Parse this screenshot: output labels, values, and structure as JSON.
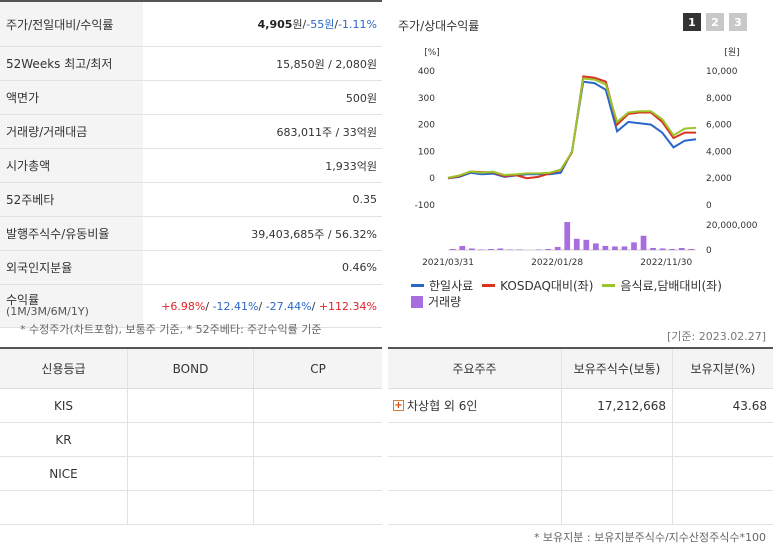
{
  "info": {
    "price_label": "주가/전일대비/수익률",
    "price": "4,905",
    "won": "원",
    "sep": " / ",
    "change": "-55원",
    "rate": "-1.11%",
    "rows": [
      {
        "label": "52Weeks 최고/최저",
        "value": "15,850원 / 2,080원"
      },
      {
        "label": "액면가",
        "value": "500원"
      },
      {
        "label": "거래량/거래대금",
        "value": "683,011주 / 33억원"
      },
      {
        "label": "시가총액",
        "value": "1,933억원"
      },
      {
        "label": "52주베타",
        "value": "0.35"
      },
      {
        "label": "발행주식수/유동비율",
        "value": "39,403,685주 / 56.32%"
      },
      {
        "label": "외국인지분율",
        "value": "0.46%"
      }
    ],
    "return_label": "수익률",
    "return_sub": "(1M/3M/6M/1Y)",
    "returns": [
      "+6.98%",
      "-12.41%",
      "-27.44%",
      "+112.34%"
    ],
    "note": "* 수정주가(차트포함), 보통주 기준, * 52주베타: 주간수익률 기준"
  },
  "chart_panel": {
    "title": "주가/상대수익률",
    "tabs": [
      "1",
      "2",
      "3"
    ],
    "active_tab": 0
  },
  "chart_data": {
    "type": "line",
    "y_left_unit": "[%]",
    "y_right_unit": "[원]",
    "y_left_ticks": [
      400,
      300,
      200,
      100,
      0,
      -100
    ],
    "y_right_ticks": [
      "10,000",
      "8,000",
      "6,000",
      "4,000",
      "2,000",
      "0"
    ],
    "volume_ticks": [
      "20,000,000",
      "0"
    ],
    "x_ticks": [
      "2021/03/31",
      "2022/01/28",
      "2022/11/30"
    ],
    "series": [
      {
        "name": "한일사료",
        "color": "#2a66c8",
        "values": [
          0,
          5,
          20,
          15,
          17,
          5,
          10,
          15,
          15,
          15,
          20,
          100,
          360,
          355,
          330,
          175,
          210,
          205,
          200,
          170,
          115,
          140,
          145
        ]
      },
      {
        "name": "KOSDAQ대비(좌)",
        "color": "#d9331f",
        "values": [
          0,
          8,
          25,
          22,
          22,
          8,
          12,
          0,
          5,
          18,
          30,
          95,
          380,
          375,
          360,
          200,
          240,
          245,
          245,
          210,
          150,
          170,
          170
        ]
      },
      {
        "name": "음식료,담배대비(좌)",
        "color": "#9bc42a",
        "values": [
          2,
          10,
          25,
          20,
          24,
          12,
          14,
          18,
          18,
          20,
          32,
          98,
          372,
          368,
          350,
          210,
          245,
          250,
          250,
          220,
          160,
          185,
          188
        ]
      }
    ],
    "volume": {
      "name": "거래량",
      "color": "#a86ee0",
      "values": [
        2,
        8,
        3,
        1,
        2,
        3,
        1,
        1,
        0,
        1,
        2,
        6,
        55,
        22,
        20,
        13,
        8,
        7,
        7,
        15,
        28,
        4,
        3,
        2,
        4,
        2
      ]
    }
  },
  "credit": {
    "headers": [
      "신용등급",
      "BOND",
      "CP"
    ],
    "rows": [
      "KIS",
      "KR",
      "NICE",
      ""
    ]
  },
  "basis_date": "[기준: 2023.02.27]",
  "shareholders": {
    "headers": [
      "주요주주",
      "보유주식수(보통)",
      "보유지분(%)"
    ],
    "rows": [
      {
        "name": "차상협 외 6인",
        "shares": "17,212,668",
        "pct": "43.68",
        "expand": "+"
      },
      {
        "name": "",
        "shares": "",
        "pct": ""
      },
      {
        "name": "",
        "shares": "",
        "pct": ""
      },
      {
        "name": "",
        "shares": "",
        "pct": ""
      }
    ],
    "note": "* 보유지분 : 보유지분주식수/지수산정주식수*100"
  }
}
